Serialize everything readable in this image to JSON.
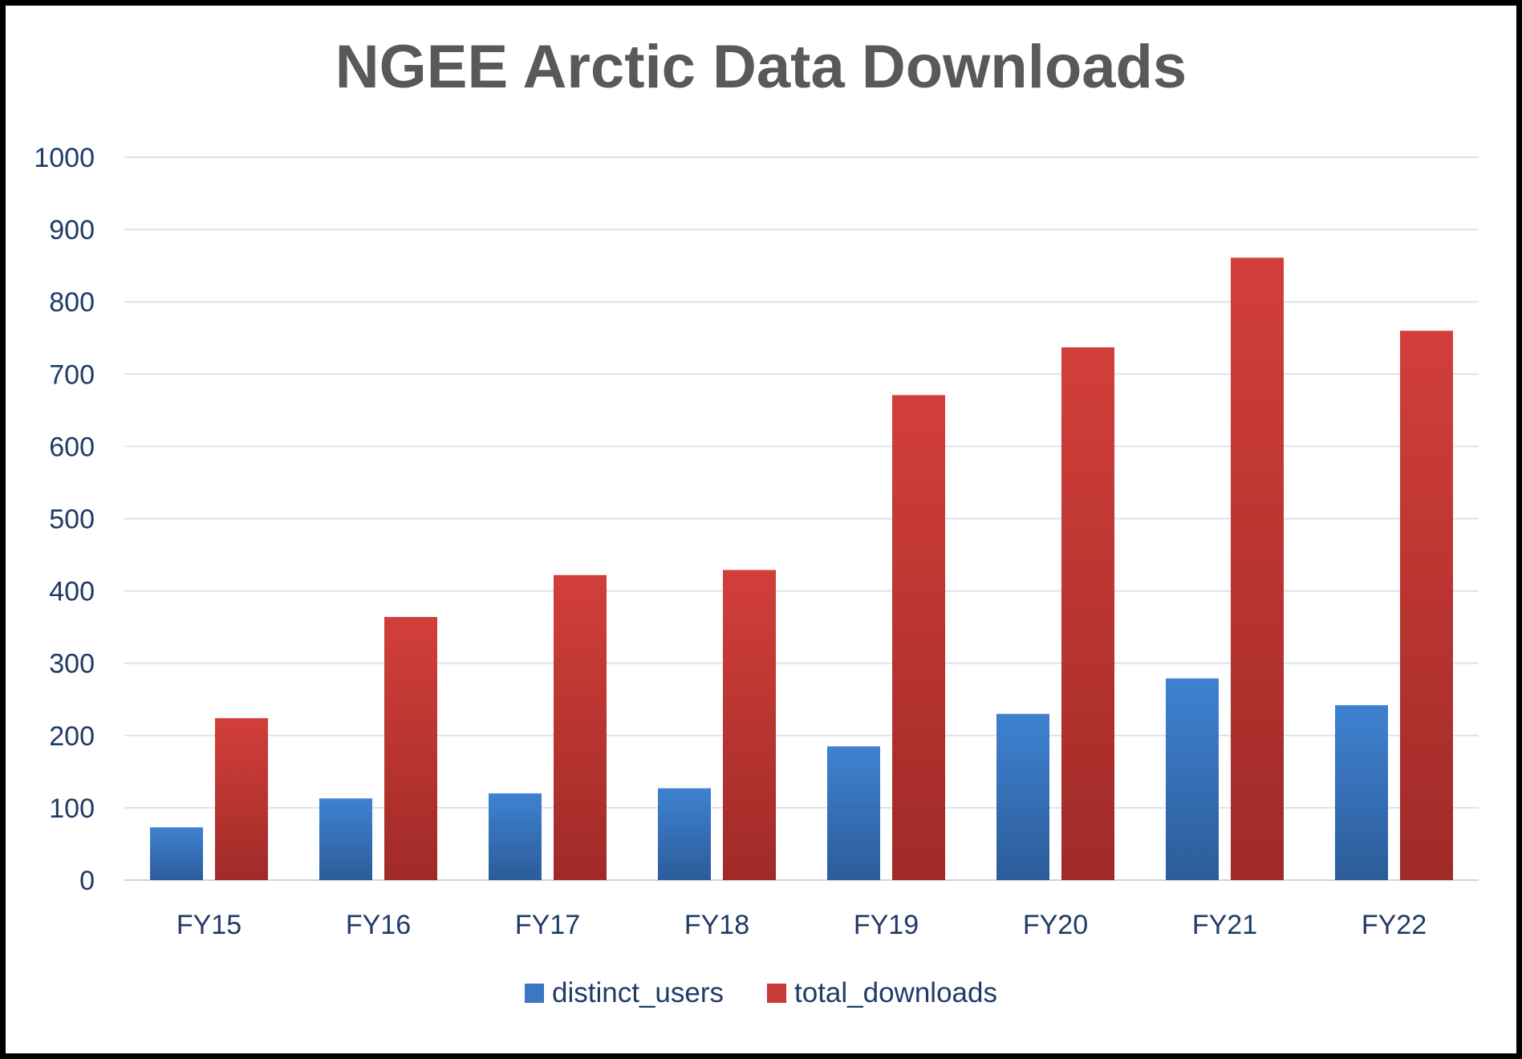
{
  "chart_data": {
    "type": "bar",
    "title": "NGEE Arctic Data Downloads",
    "xlabel": "",
    "ylabel": "",
    "ylim": [
      0,
      1000
    ],
    "yticks": [
      0,
      100,
      200,
      300,
      400,
      500,
      600,
      700,
      800,
      900,
      1000
    ],
    "grid": true,
    "legend_position": "bottom",
    "categories": [
      "FY15",
      "FY16",
      "FY17",
      "FY18",
      "FY19",
      "FY20",
      "FY21",
      "FY22"
    ],
    "series": [
      {
        "name": "distinct_users",
        "color": "#3a78c3",
        "values": [
          73,
          113,
          120,
          127,
          185,
          230,
          279,
          242
        ]
      },
      {
        "name": "total_downloads",
        "color": "#c83a36",
        "values": [
          224,
          364,
          422,
          429,
          671,
          737,
          861,
          760
        ]
      }
    ]
  }
}
